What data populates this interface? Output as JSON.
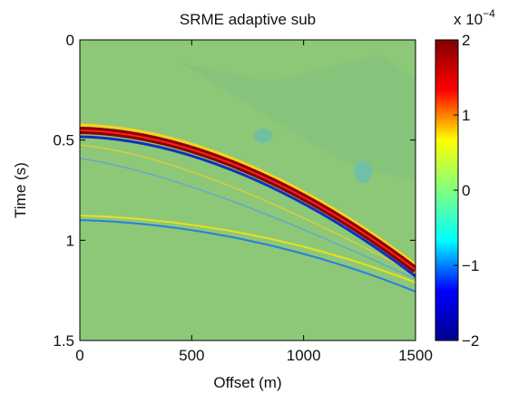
{
  "chart_data": {
    "type": "heatmap",
    "title": "SRME adaptive sub",
    "xlabel": "Offset (m)",
    "ylabel": "Time (s)",
    "xlim": [
      0,
      1500
    ],
    "xticks": [
      0,
      500,
      1000,
      1500
    ],
    "ylim": [
      0,
      1.5
    ],
    "yticks": [
      0,
      0.5,
      1,
      1.5
    ],
    "y_inverted": true,
    "clim": [
      -2,
      2
    ],
    "cticks": [
      {
        "value": -2,
        "label": "−2"
      },
      {
        "value": -1,
        "label": "−1"
      },
      0,
      1,
      2
    ],
    "colorbar_scale": "x 10",
    "colorbar_exponent": "−4",
    "colormap": [
      "#00008f",
      "#0000ff",
      "#00ffff",
      "#80ff80",
      "#ffff00",
      "#ff0000",
      "#800000"
    ]
  }
}
